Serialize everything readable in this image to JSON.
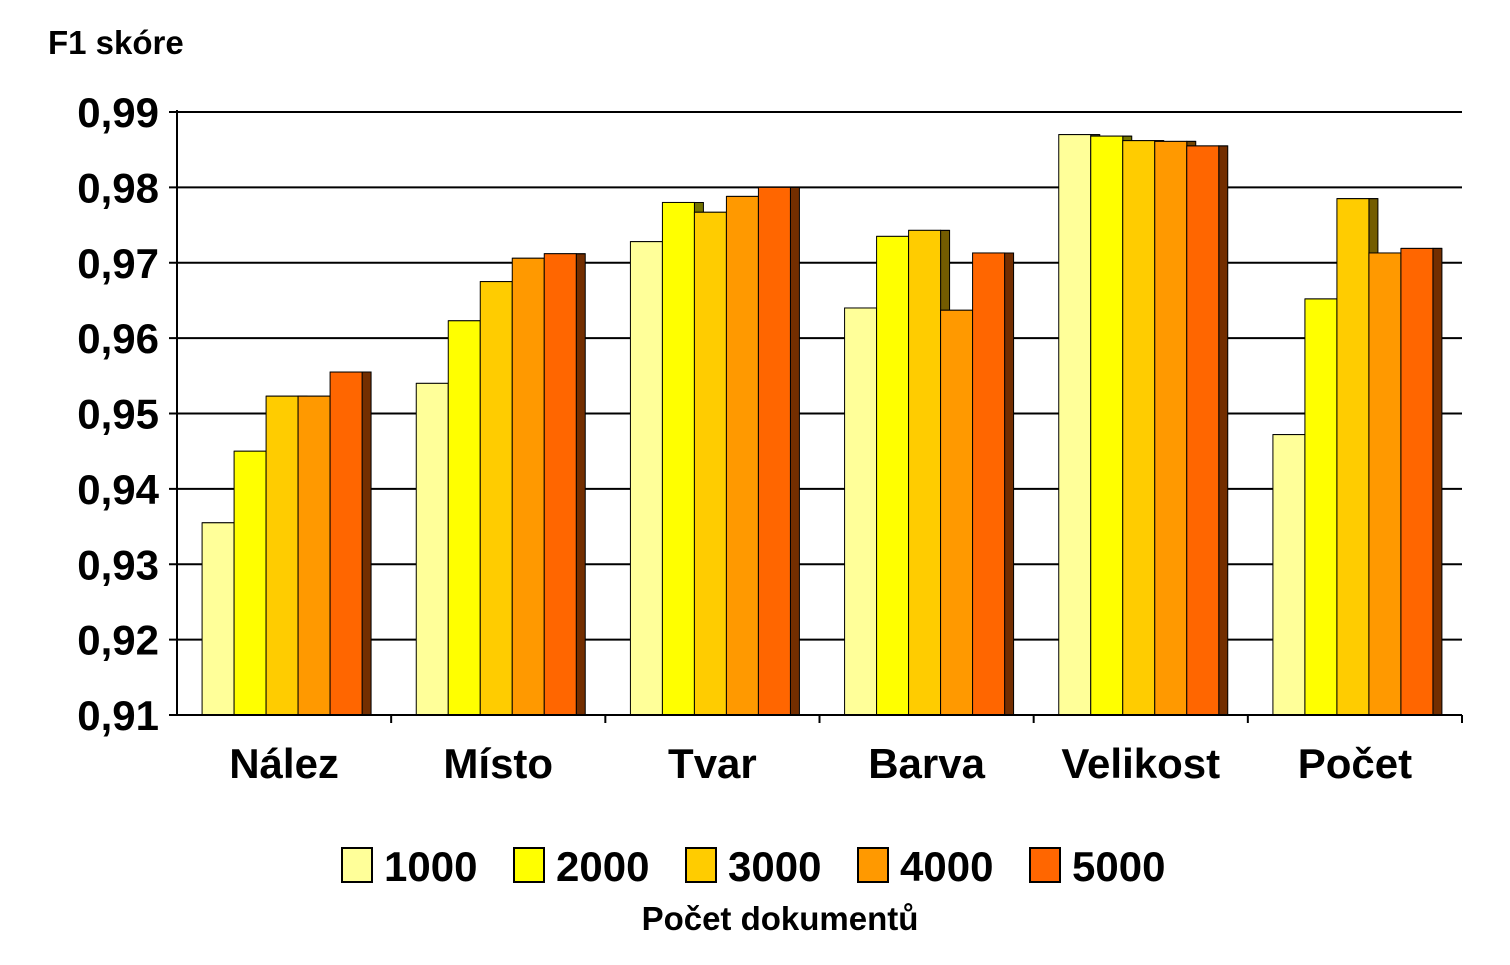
{
  "chart_data": {
    "type": "bar",
    "ylabel": "F1 skóre",
    "xlabel": "",
    "categories": [
      "Nález",
      "Místo",
      "Tvar",
      "Barva",
      "Velikost",
      "Počet"
    ],
    "ylim": [
      0.91,
      0.99
    ],
    "yticks": [
      "0,99",
      "0,98",
      "0,97",
      "0,96",
      "0,95",
      "0,94",
      "0,93",
      "0,92",
      "0,91"
    ],
    "ytick_values": [
      0.99,
      0.98,
      0.97,
      0.96,
      0.95,
      0.94,
      0.93,
      0.92,
      0.91
    ],
    "grid": true,
    "legend_placement": "bottom",
    "legend_title": "Počet dokumentů",
    "series": [
      {
        "name": "1000",
        "color": "#FFFF99",
        "values": [
          0.9355,
          0.954,
          0.9728,
          0.964,
          0.987,
          0.9472
        ]
      },
      {
        "name": "2000",
        "color": "#FFFF00",
        "values": [
          0.945,
          0.9623,
          0.978,
          0.9735,
          0.9868,
          0.9652
        ]
      },
      {
        "name": "3000",
        "color": "#FFCC00",
        "values": [
          0.9523,
          0.9675,
          0.9767,
          0.9743,
          0.9862,
          0.9785
        ]
      },
      {
        "name": "4000",
        "color": "#FF9900",
        "values": [
          0.9523,
          0.9706,
          0.9788,
          0.9637,
          0.9861,
          0.9713
        ]
      },
      {
        "name": "5000",
        "color": "#FF6600",
        "values": [
          0.9555,
          0.9712,
          0.98,
          0.9713,
          0.9855,
          0.9719
        ]
      }
    ]
  }
}
